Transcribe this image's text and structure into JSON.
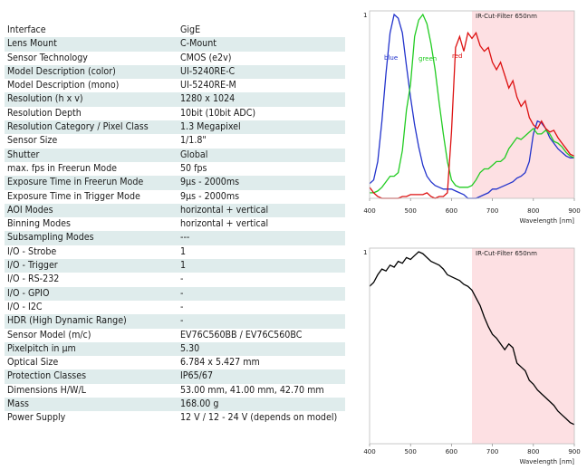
{
  "specs": [
    {
      "label": "Interface",
      "value": "GigE"
    },
    {
      "label": "Lens Mount",
      "value": "C-Mount"
    },
    {
      "label": "Sensor Technology",
      "value": "CMOS (e2v)"
    },
    {
      "label": "Model Description (color)",
      "value": "UI-5240RE-C"
    },
    {
      "label": "Model Description (mono)",
      "value": "UI-5240RE-M"
    },
    {
      "label": "Resolution (h x v)",
      "value": "1280 x 1024"
    },
    {
      "label": "Resolution Depth",
      "value": "10bit (10bit ADC)"
    },
    {
      "label": "Resolution Category / Pixel Class",
      "value": "1.3 Megapixel"
    },
    {
      "label": "Sensor Size",
      "value": "1/1.8\""
    },
    {
      "label": "Shutter",
      "value": "Global"
    },
    {
      "label": "max. fps in Freerun Mode",
      "value": "50 fps"
    },
    {
      "label": "Exposure Time in Freerun Mode",
      "value": "9µs - 2000ms"
    },
    {
      "label": "Exposure Time in Trigger Mode",
      "value": "9µs - 2000ms"
    },
    {
      "label": "AOI Modes",
      "value": "horizontal + vertical"
    },
    {
      "label": "Binning Modes",
      "value": "horizontal + vertical"
    },
    {
      "label": "Subsampling Modes",
      "value": "---"
    },
    {
      "label": "I/O - Strobe",
      "value": "1"
    },
    {
      "label": "I/O - Trigger",
      "value": "1"
    },
    {
      "label": "I/O - RS-232",
      "value": "-"
    },
    {
      "label": "I/O - GPIO",
      "value": "-"
    },
    {
      "label": "I/O - I2C",
      "value": "-"
    },
    {
      "label": "HDR (High Dynamic Range)",
      "value": "-"
    },
    {
      "label": "Sensor Model (m/c)",
      "value": "EV76C560BB / EV76C560BC"
    },
    {
      "label": "Pixelpitch in µm",
      "value": "5.30"
    },
    {
      "label": "Optical Size",
      "value": "6.784 x 5.427 mm"
    },
    {
      "label": "Protection Classes",
      "value": "IP65/67"
    },
    {
      "label": "Dimensions H/W/L",
      "value": "53.00 mm, 41.00 mm, 42.70 mm"
    },
    {
      "label": "Mass",
      "value": "168.00 g"
    },
    {
      "label": "Power Supply",
      "value": "12 V / 12 - 24 V (depends on model)"
    }
  ],
  "chart_data": [
    {
      "type": "line",
      "xlabel": "Wavelength [nm]",
      "ylabel": "",
      "xlim": [
        400,
        900
      ],
      "ylim": [
        0,
        1
      ],
      "xticks": [
        400,
        500,
        600,
        700,
        800,
        900
      ],
      "ytick_label": "1",
      "band": {
        "label": "IR-Cut-Filter 650nm",
        "from": 650,
        "to": 900,
        "color": "#fde0e3"
      },
      "series": [
        {
          "name": "blue",
          "color": "#2233cc",
          "x": [
            400,
            410,
            420,
            430,
            440,
            450,
            460,
            470,
            480,
            490,
            500,
            510,
            520,
            530,
            540,
            550,
            560,
            570,
            580,
            590,
            600,
            610,
            620,
            630,
            640,
            650,
            660,
            670,
            680,
            690,
            700,
            710,
            720,
            730,
            740,
            750,
            760,
            770,
            780,
            790,
            800,
            810,
            820,
            830,
            840,
            850,
            860,
            870,
            880,
            890,
            900
          ],
          "y": [
            0.08,
            0.1,
            0.2,
            0.42,
            0.68,
            0.9,
            1.0,
            0.98,
            0.9,
            0.72,
            0.55,
            0.4,
            0.28,
            0.18,
            0.12,
            0.09,
            0.07,
            0.06,
            0.05,
            0.05,
            0.05,
            0.04,
            0.03,
            0.02,
            0.0,
            0.0,
            0.0,
            0.01,
            0.02,
            0.03,
            0.05,
            0.05,
            0.06,
            0.07,
            0.08,
            0.09,
            0.11,
            0.12,
            0.14,
            0.2,
            0.35,
            0.42,
            0.41,
            0.38,
            0.33,
            0.3,
            0.27,
            0.25,
            0.23,
            0.22,
            0.22
          ]
        },
        {
          "name": "green",
          "color": "#22cc22",
          "x": [
            400,
            410,
            420,
            430,
            440,
            450,
            460,
            470,
            480,
            490,
            500,
            510,
            520,
            530,
            540,
            550,
            560,
            570,
            580,
            590,
            600,
            610,
            620,
            630,
            640,
            650,
            660,
            670,
            680,
            690,
            700,
            710,
            720,
            730,
            740,
            750,
            760,
            770,
            780,
            790,
            800,
            810,
            820,
            830,
            840,
            850,
            860,
            870,
            880,
            890,
            900
          ],
          "y": [
            0.03,
            0.03,
            0.04,
            0.06,
            0.09,
            0.12,
            0.12,
            0.14,
            0.26,
            0.48,
            0.62,
            0.88,
            0.97,
            1.0,
            0.95,
            0.84,
            0.7,
            0.52,
            0.35,
            0.2,
            0.1,
            0.07,
            0.06,
            0.06,
            0.06,
            0.07,
            0.1,
            0.14,
            0.16,
            0.16,
            0.18,
            0.2,
            0.2,
            0.22,
            0.27,
            0.3,
            0.33,
            0.32,
            0.34,
            0.36,
            0.38,
            0.35,
            0.35,
            0.37,
            0.35,
            0.31,
            0.3,
            0.28,
            0.25,
            0.23,
            0.22
          ]
        },
        {
          "name": "red",
          "color": "#dd1111",
          "x": [
            400,
            410,
            420,
            430,
            440,
            450,
            460,
            470,
            480,
            490,
            500,
            510,
            520,
            530,
            540,
            550,
            560,
            570,
            580,
            590,
            600,
            610,
            620,
            630,
            640,
            650,
            660,
            670,
            680,
            690,
            700,
            710,
            720,
            730,
            740,
            750,
            760,
            770,
            780,
            790,
            800,
            810,
            820,
            830,
            840,
            850,
            860,
            870,
            880,
            890,
            900
          ],
          "y": [
            0.06,
            0.03,
            0.01,
            0.0,
            0.0,
            0.0,
            0.0,
            0.0,
            0.01,
            0.01,
            0.02,
            0.02,
            0.02,
            0.02,
            0.03,
            0.01,
            0.0,
            0.01,
            0.01,
            0.03,
            0.36,
            0.82,
            0.88,
            0.8,
            0.9,
            0.87,
            0.9,
            0.83,
            0.8,
            0.82,
            0.74,
            0.7,
            0.74,
            0.67,
            0.6,
            0.64,
            0.55,
            0.5,
            0.53,
            0.44,
            0.4,
            0.38,
            0.42,
            0.38,
            0.36,
            0.37,
            0.33,
            0.3,
            0.27,
            0.24,
            0.23
          ]
        }
      ]
    },
    {
      "type": "line",
      "xlabel": "Wavelength [nm]",
      "ylabel": "",
      "xlim": [
        400,
        900
      ],
      "ylim": [
        0,
        1
      ],
      "xticks": [
        400,
        500,
        600,
        700,
        800,
        900
      ],
      "ytick_label": "1",
      "band": {
        "label": "IR-Cut-Filter 650nm",
        "from": 650,
        "to": 900,
        "color": "#fde0e3"
      },
      "series": [
        {
          "name": "",
          "color": "#000000",
          "x": [
            400,
            410,
            420,
            430,
            440,
            450,
            460,
            470,
            480,
            490,
            500,
            510,
            520,
            530,
            540,
            550,
            560,
            570,
            580,
            590,
            600,
            610,
            620,
            630,
            640,
            650,
            660,
            670,
            680,
            690,
            700,
            710,
            720,
            730,
            740,
            750,
            760,
            770,
            780,
            790,
            800,
            810,
            820,
            830,
            840,
            850,
            860,
            870,
            880,
            890,
            900
          ],
          "y": [
            0.82,
            0.84,
            0.88,
            0.91,
            0.9,
            0.93,
            0.92,
            0.95,
            0.94,
            0.97,
            0.96,
            0.98,
            1.0,
            0.99,
            0.97,
            0.95,
            0.94,
            0.93,
            0.91,
            0.88,
            0.87,
            0.86,
            0.85,
            0.83,
            0.82,
            0.8,
            0.76,
            0.72,
            0.66,
            0.61,
            0.57,
            0.55,
            0.52,
            0.49,
            0.52,
            0.5,
            0.42,
            0.4,
            0.38,
            0.33,
            0.31,
            0.28,
            0.26,
            0.24,
            0.22,
            0.2,
            0.17,
            0.15,
            0.13,
            0.11,
            0.1
          ]
        }
      ]
    }
  ]
}
